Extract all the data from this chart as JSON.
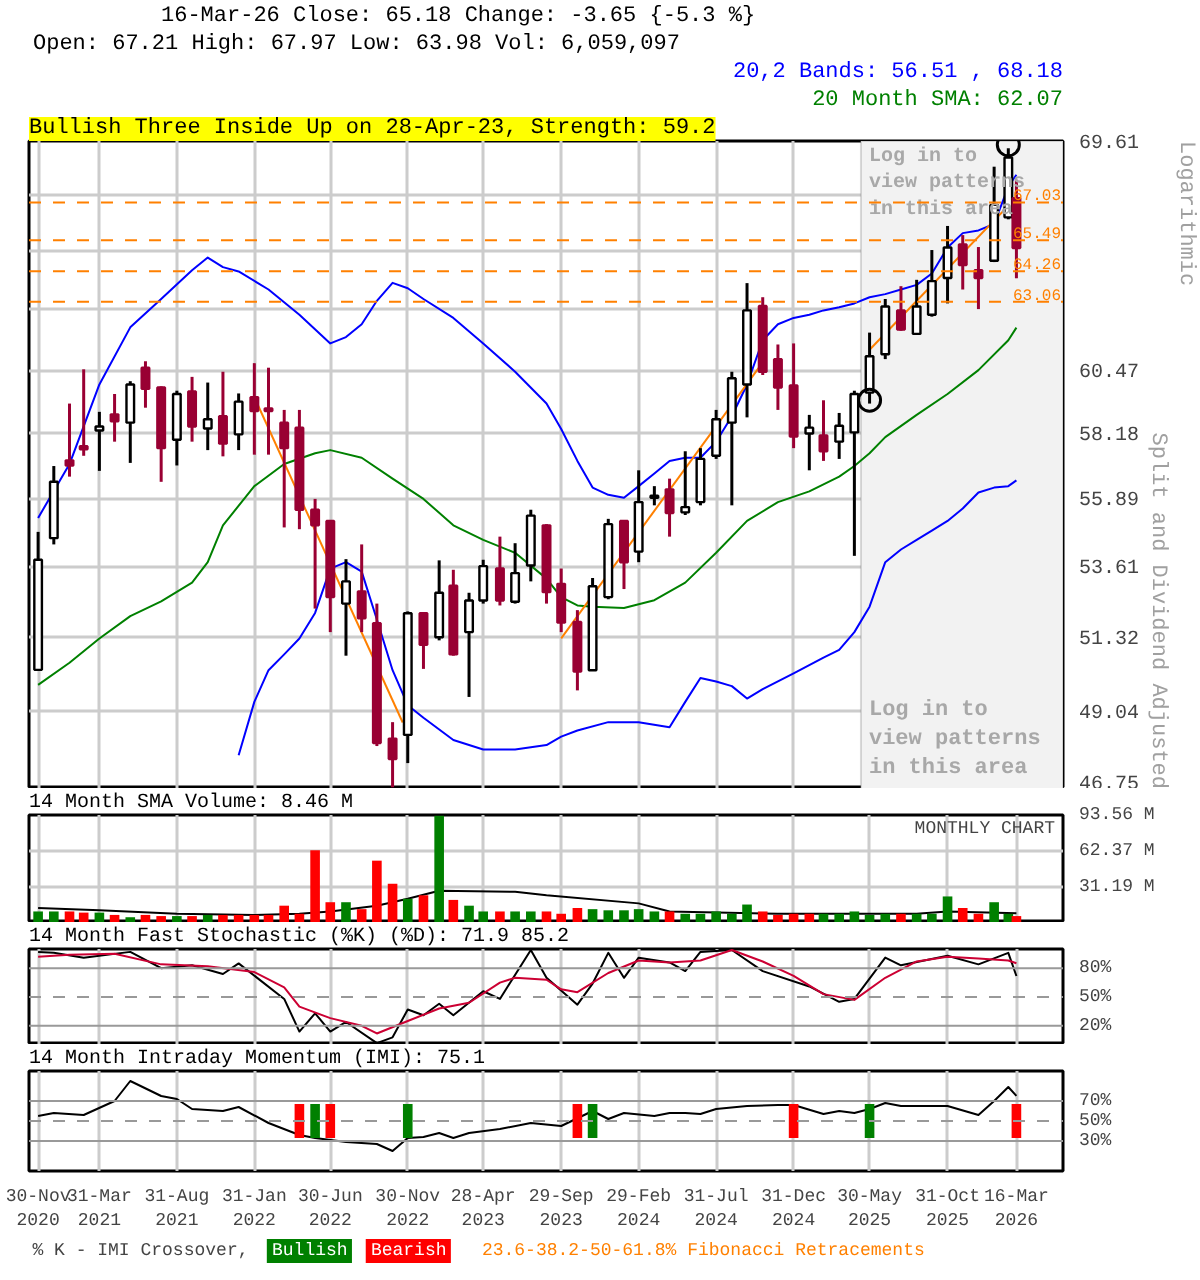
{
  "chart_data": [
    {
      "type": "candlestick",
      "title": "16-Mar-26 Close: 65.18 Change: -3.65 {-5.3 %}",
      "subtitle": "Open: 67.21 High: 67.97 Low: 63.98 Vol: 6,059,097",
      "ylabel": "Split and Dividend Adjusted",
      "annotations": [
        "Bullish Three Inside Up on 28-Apr-23, Strength: 59.2",
        "Logarithmic",
        "Log in to\nview patterns\nin this area"
      ],
      "x": [
        "2020-11-30",
        "2020-12-31",
        "2021-01-31",
        "2021-02-28",
        "2021-03-31",
        "2021-04-30",
        "2021-05-31",
        "2021-06-30",
        "2021-07-31",
        "2021-08-31",
        "2021-09-30",
        "2021-10-31",
        "2021-11-30",
        "2021-12-31",
        "2022-01-31",
        "2022-02-28",
        "2022-03-31",
        "2022-04-30",
        "2022-05-31",
        "2022-06-30",
        "2022-07-31",
        "2022-08-31",
        "2022-09-30",
        "2022-10-31",
        "2022-11-30",
        "2022-12-31",
        "2023-01-31",
        "2023-02-28",
        "2023-03-31",
        "2023-04-28",
        "2023-05-31",
        "2023-06-30",
        "2023-07-31",
        "2023-08-31",
        "2023-09-29",
        "2023-10-31",
        "2023-11-30",
        "2023-12-31",
        "2024-01-31",
        "2024-02-29",
        "2024-03-31",
        "2024-04-30",
        "2024-05-31",
        "2024-06-30",
        "2024-07-31",
        "2024-08-31",
        "2024-09-30",
        "2024-10-31",
        "2024-11-30",
        "2024-12-31",
        "2025-01-31",
        "2025-02-28",
        "2025-03-31",
        "2025-04-30",
        "2025-05-30",
        "2025-06-30",
        "2025-07-31",
        "2025-08-31",
        "2025-09-30",
        "2025-10-31",
        "2025-11-30",
        "2025-12-31",
        "2026-01-31",
        "2026-02-28",
        "2026-03-16"
      ],
      "ohlc": [
        [
          50.3,
          54.75,
          50.29,
          53.82
        ],
        [
          54.54,
          57.01,
          54.33,
          56.46
        ],
        [
          57.21,
          59.24,
          56.64,
          57.03
        ],
        [
          57.71,
          60.5,
          57.37,
          57.6
        ],
        [
          58.27,
          58.94,
          56.84,
          58.41
        ],
        [
          58.85,
          59.59,
          57.87,
          58.6
        ],
        [
          58.55,
          60.06,
          57.12,
          59.94
        ],
        [
          60.56,
          60.8,
          59.09,
          59.78
        ],
        [
          59.83,
          59.87,
          56.46,
          57.64
        ],
        [
          57.94,
          59.71,
          57.03,
          59.59
        ],
        [
          59.68,
          60.22,
          57.87,
          58.41
        ],
        [
          58.34,
          60.01,
          57.57,
          58.67
        ],
        [
          58.78,
          60.41,
          57.35,
          57.8
        ],
        [
          58.13,
          59.61,
          57.57,
          59.31
        ],
        [
          59.47,
          60.73,
          57.41,
          58.97
        ],
        [
          59.06,
          60.56,
          57.41,
          58.97
        ],
        [
          58.55,
          59.01,
          54.9,
          57.64
        ],
        [
          58.37,
          59.01,
          54.84,
          55.5
        ],
        [
          55.5,
          55.87,
          52.23,
          54.97
        ],
        [
          55.12,
          55.12,
          51.48,
          52.6
        ],
        [
          52.39,
          53.84,
          50.74,
          53.11
        ],
        [
          52.78,
          54.33,
          51.48,
          51.92
        ],
        [
          51.76,
          52.39,
          48.0,
          48.09
        ],
        [
          48.22,
          48.71,
          46.8,
          47.62
        ],
        [
          48.33,
          52.14,
          47.5,
          52.08
        ],
        [
          52.08,
          52.12,
          50.33,
          51.08
        ],
        [
          51.32,
          53.8,
          51.22,
          52.74
        ],
        [
          52.97,
          53.49,
          50.74,
          50.78
        ],
        [
          51.48,
          52.74,
          49.47,
          52.49
        ],
        [
          52.49,
          53.82,
          52.39,
          53.61
        ],
        [
          53.53,
          54.59,
          52.33,
          52.49
        ],
        [
          52.45,
          54.37,
          52.39,
          53.38
        ],
        [
          53.63,
          55.5,
          53.11,
          55.3
        ],
        [
          54.97,
          55.01,
          52.39,
          52.76
        ],
        [
          53.03,
          53.53,
          51.48,
          51.78
        ],
        [
          51.8,
          52.18,
          49.67,
          50.25
        ],
        [
          50.29,
          53.22,
          50.29,
          52.95
        ],
        [
          52.6,
          55.19,
          52.53,
          55.01
        ],
        [
          55.12,
          55.12,
          52.86,
          53.74
        ],
        [
          54.09,
          56.86,
          53.74,
          55.76
        ],
        [
          55.91,
          56.31,
          55.65,
          55.98
        ],
        [
          56.2,
          56.57,
          54.59,
          55.39
        ],
        [
          55.41,
          57.53,
          55.32,
          55.59
        ],
        [
          55.76,
          57.64,
          55.65,
          57.26
        ],
        [
          57.37,
          59.01,
          57.26,
          58.67
        ],
        [
          58.55,
          60.41,
          55.65,
          60.17
        ],
        [
          59.94,
          63.79,
          58.74,
          62.73
        ],
        [
          62.9,
          63.24,
          60.29,
          60.41
        ],
        [
          60.88,
          61.43,
          59.01,
          59.83
        ],
        [
          59.9,
          61.47,
          57.64,
          58.05
        ],
        [
          58.16,
          58.83,
          56.86,
          58.37
        ],
        [
          58.09,
          59.36,
          57.19,
          57.53
        ],
        [
          57.87,
          58.9,
          57.26,
          58.44
        ],
        [
          58.2,
          59.71,
          53.95,
          59.59
        ],
        [
          59.64,
          61.88,
          59.24,
          60.99
        ],
        [
          61.06,
          63.17,
          60.88,
          62.88
        ],
        [
          62.73,
          63.67,
          61.95,
          62.0
        ],
        [
          61.83,
          63.92,
          61.83,
          62.88
        ],
        [
          62.56,
          65.1,
          62.49,
          63.87
        ],
        [
          63.99,
          66.07,
          63.0,
          65.2
        ],
        [
          65.32,
          65.7,
          63.54,
          64.5
        ],
        [
          64.3,
          65.22,
          62.78,
          63.99
        ],
        [
          64.67,
          68.52,
          64.62,
          66.93
        ],
        [
          66.42,
          69.3,
          66.34,
          68.91
        ],
        [
          67.21,
          67.97,
          63.98,
          65.18
        ]
      ],
      "colors": [
        "#ffffff",
        "#ffffff",
        "#990033",
        "#990033",
        "#ffffff",
        "#990033",
        "#ffffff",
        "#990033",
        "#990033",
        "#ffffff",
        "#990033",
        "#ffffff",
        "#990033",
        "#ffffff",
        "#990033",
        "#990033",
        "#990033",
        "#990033",
        "#990033",
        "#990033",
        "#ffffff",
        "#990033",
        "#990033",
        "#990033",
        "#ffffff",
        "#990033",
        "#ffffff",
        "#990033",
        "#ffffff",
        "#ffffff",
        "#990033",
        "#ffffff",
        "#ffffff",
        "#990033",
        "#990033",
        "#990033",
        "#ffffff",
        "#ffffff",
        "#990033",
        "#ffffff",
        "#ffffff",
        "#990033",
        "#ffffff",
        "#ffffff",
        "#ffffff",
        "#ffffff",
        "#ffffff",
        "#990033",
        "#990033",
        "#990033",
        "#ffffff",
        "#990033",
        "#ffffff",
        "#ffffff",
        "#ffffff",
        "#ffffff",
        "#990033",
        "#ffffff",
        "#ffffff",
        "#ffffff",
        "#990033",
        "#990033",
        "#ffffff",
        "#ffffff",
        "#990033"
      ],
      "series": [
        {
          "name": "20,2 Bands: 56.51 , 68.18",
          "type": "line",
          "color": "#0000ff",
          "x": [
            "2020-11-30",
            "2021-01-31",
            "2021-03-31",
            "2021-05-31",
            "2021-07-31",
            "2021-09-30",
            "2021-10-31",
            "2021-11-30",
            "2021-12-31",
            "2022-02-28",
            "2022-04-30",
            "2022-06-30",
            "2022-07-31",
            "2022-08-31",
            "2022-09-30",
            "2022-10-31",
            "2022-11-30",
            "2022-12-31",
            "2023-02-28",
            "2023-04-28",
            "2023-06-30",
            "2023-08-31",
            "2023-09-29",
            "2023-10-31",
            "2023-11-30",
            "2023-12-31",
            "2024-01-31",
            "2024-02-29",
            "2024-03-31",
            "2024-04-30",
            "2024-05-31",
            "2024-06-30",
            "2024-07-31",
            "2024-08-31",
            "2024-09-30",
            "2024-10-31",
            "2024-11-30",
            "2024-12-31",
            "2025-01-31",
            "2025-02-28",
            "2025-03-31",
            "2025-04-30",
            "2025-05-30",
            "2025-06-30",
            "2025-07-31",
            "2025-08-31",
            "2025-09-30",
            "2025-10-31",
            "2025-11-30",
            "2025-12-31",
            "2026-01-31",
            "2026-02-28",
            "2026-03-16"
          ],
          "values": [
            55.22,
            57.08,
            59.94,
            62.08,
            63.17,
            64.3,
            64.8,
            64.42,
            64.25,
            63.54,
            62.56,
            61.47,
            61.71,
            62.2,
            63.1,
            63.8,
            63.59,
            63.17,
            62.44,
            61.47,
            60.41,
            59.24,
            58.32,
            57.19,
            56.26,
            56.01,
            55.91,
            56.31,
            56.75,
            57.19,
            57.3,
            57.3,
            57.87,
            58.78,
            59.94,
            61.59,
            62.2,
            62.44,
            62.56,
            62.73,
            62.85,
            63.0,
            63.24,
            63.36,
            63.54,
            63.72,
            64.17,
            65.2,
            65.78,
            65.89,
            66.15,
            67.69,
            68.18
          ]
        },
        {
          "type": "line",
          "color": "#0000ff",
          "x": [
            "2021-12-31",
            "2022-01-31",
            "2022-02-28",
            "2022-03-31",
            "2022-04-30",
            "2022-05-31",
            "2022-06-30",
            "2022-07-31",
            "2022-08-31",
            "2022-09-30",
            "2022-10-31",
            "2022-11-30",
            "2022-12-31",
            "2023-02-28",
            "2023-04-28",
            "2023-06-30",
            "2023-08-31",
            "2023-09-29",
            "2023-10-31",
            "2023-12-31",
            "2024-02-29",
            "2024-04-30",
            "2024-05-31",
            "2024-06-30",
            "2024-07-31",
            "2024-08-31",
            "2024-09-30",
            "2024-10-31",
            "2024-12-31",
            "2025-02-28",
            "2025-03-31",
            "2025-04-30",
            "2025-05-30",
            "2025-06-30",
            "2025-07-31",
            "2025-08-31",
            "2025-09-30",
            "2025-10-31",
            "2025-11-30",
            "2025-12-31",
            "2026-01-31",
            "2026-02-28",
            "2026-03-16"
          ],
          "values": [
            47.73,
            49.32,
            50.29,
            50.78,
            51.28,
            52.09,
            53.53,
            53.74,
            53.43,
            51.88,
            50.29,
            49.22,
            48.84,
            48.18,
            47.9,
            47.9,
            48.03,
            48.28,
            48.46,
            48.71,
            48.71,
            48.56,
            49.32,
            50.05,
            49.94,
            49.8,
            49.42,
            49.71,
            50.19,
            50.68,
            50.92,
            51.48,
            52.29,
            53.74,
            54.16,
            54.48,
            54.79,
            55.12,
            55.54,
            56.09,
            56.26,
            56.31,
            56.51
          ]
        },
        {
          "name": "20 Month SMA: 62.07",
          "type": "line",
          "color": "#008000",
          "x": [
            "2020-11-30",
            "2021-01-31",
            "2021-03-31",
            "2021-05-31",
            "2021-07-31",
            "2021-09-30",
            "2021-10-31",
            "2021-11-30",
            "2022-01-31",
            "2022-03-31",
            "2022-05-31",
            "2022-06-30",
            "2022-08-31",
            "2022-10-31",
            "2022-12-31",
            "2023-02-28",
            "2023-04-28",
            "2023-06-30",
            "2023-08-31",
            "2023-09-29",
            "2023-10-31",
            "2023-11-30",
            "2024-01-31",
            "2024-03-31",
            "2024-05-31",
            "2024-07-31",
            "2024-09-30",
            "2024-11-30",
            "2025-01-31",
            "2025-03-31",
            "2025-04-30",
            "2025-05-30",
            "2025-06-30",
            "2025-08-31",
            "2025-10-31",
            "2025-12-31",
            "2026-02-28",
            "2026-03-16"
          ],
          "values": [
            49.84,
            50.52,
            51.28,
            51.99,
            52.46,
            53.07,
            53.74,
            54.97,
            56.31,
            57.08,
            57.46,
            57.57,
            57.3,
            56.57,
            55.87,
            54.97,
            54.48,
            54.05,
            53.2,
            52.6,
            52.33,
            52.29,
            52.25,
            52.5,
            53.07,
            54.05,
            55.12,
            55.76,
            56.13,
            56.64,
            57.01,
            57.46,
            58.03,
            58.83,
            59.59,
            60.47,
            61.59,
            62.07
          ]
        },
        {
          "type": "line",
          "color": "#ff8000",
          "x": [
            "2022-01-31",
            "2022-11-20"
          ],
          "values": [
            59.47,
            48.7
          ]
        },
        {
          "type": "line",
          "color": "#ff8000",
          "x": [
            "2023-09-29",
            "2024-10-31"
          ],
          "values": [
            51.28,
            60.76
          ]
        },
        {
          "type": "line",
          "color": "#ff8000",
          "x": [
            "2025-05-30",
            "2026-03-16"
          ],
          "values": [
            61.23,
            67.24
          ]
        },
        {
          "type": "scatter",
          "marker": "circle",
          "color": "#000000",
          "x": [
            "2025-05-30",
            "2026-02-28"
          ],
          "values": [
            59.36,
            69.45
          ]
        }
      ],
      "ref_lines": [
        {
          "axis": "y",
          "value": 67.03,
          "label": "67.03",
          "color": "#ff8000",
          "line_style": "dashed"
        },
        {
          "axis": "y",
          "value": 65.49,
          "label": "65.49",
          "color": "#ff8000",
          "line_style": "dashed"
        },
        {
          "axis": "y",
          "value": 64.26,
          "label": "64.26",
          "color": "#ff8000",
          "line_style": "dashed"
        },
        {
          "axis": "y",
          "value": 63.06,
          "label": "63.06",
          "color": "#ff8000",
          "line_style": "dashed"
        }
      ],
      "bands": [
        {
          "axis": "x",
          "from": "2025-05-13",
          "to": "2026-06-16",
          "label": "Log in to\nview patterns\nin this area",
          "color": "#f2f2f2"
        }
      ],
      "xlim": [
        "2020-11-12",
        "2026-06-16"
      ],
      "ylim": [
        46.75,
        69.61
      ],
      "yticks": [
        46.75,
        49.04,
        51.32,
        53.61,
        55.89,
        58.18,
        60.47,
        {
          "value": 62.75,
          "label": null
        },
        {
          "value": 65.04,
          "label": null
        },
        {
          "value": 67.32,
          "label": null
        },
        69.61
      ],
      "log": true,
      "grid": true,
      "legend": "top right",
      "tick_labels": "y"
    },
    {
      "type": "bar",
      "title": "14 Month SMA Volume: 8.46 M",
      "annotations": [
        "MONTHLY CHART"
      ],
      "x": [
        "2020-11-30",
        "2020-12-31",
        "2021-01-31",
        "2021-02-28",
        "2021-03-31",
        "2021-04-30",
        "2021-05-31",
        "2021-06-30",
        "2021-07-31",
        "2021-08-31",
        "2021-09-30",
        "2021-10-31",
        "2021-11-30",
        "2021-12-31",
        "2022-01-31",
        "2022-02-28",
        "2022-03-31",
        "2022-04-30",
        "2022-05-31",
        "2022-06-30",
        "2022-07-31",
        "2022-08-31",
        "2022-09-30",
        "2022-10-31",
        "2022-11-30",
        "2022-12-31",
        "2023-01-31",
        "2023-02-28",
        "2023-03-31",
        "2023-04-28",
        "2023-05-31",
        "2023-06-30",
        "2023-07-31",
        "2023-08-31",
        "2023-09-29",
        "2023-10-31",
        "2023-11-30",
        "2023-12-31",
        "2024-01-31",
        "2024-02-29",
        "2024-03-31",
        "2024-04-30",
        "2024-05-31",
        "2024-06-30",
        "2024-07-31",
        "2024-08-31",
        "2024-09-30",
        "2024-10-31",
        "2024-11-30",
        "2024-12-31",
        "2025-01-31",
        "2025-02-28",
        "2025-03-31",
        "2025-04-30",
        "2025-05-30",
        "2025-06-30",
        "2025-07-31",
        "2025-08-31",
        "2025-09-30",
        "2025-10-31",
        "2025-11-30",
        "2025-12-31",
        "2026-01-31",
        "2026-02-28",
        "2026-03-16"
      ],
      "values": [
        10,
        10,
        10,
        9,
        9,
        7,
        5,
        7,
        6,
        6,
        6,
        7,
        7,
        7,
        7,
        7,
        15,
        8,
        63,
        18,
        18,
        12,
        54,
        34,
        21,
        24,
        93,
        20,
        15,
        10,
        10,
        10,
        10,
        10,
        8,
        13,
        12,
        11,
        11,
        12,
        10,
        10,
        8,
        8,
        10,
        8,
        16,
        10,
        7,
        8,
        8,
        8,
        8,
        10,
        7,
        8,
        8,
        8,
        8,
        23,
        13,
        8,
        18,
        8,
        6
      ],
      "colors": [
        "#008000",
        "#008000",
        "#ff0000",
        "#ff0000",
        "#008000",
        "#ff0000",
        "#008000",
        "#ff0000",
        "#ff0000",
        "#008000",
        "#ff0000",
        "#008000",
        "#ff0000",
        "#ff0000",
        "#ff0000",
        "#ff0000",
        "#ff0000",
        "#ff0000",
        "#ff0000",
        "#ff0000",
        "#008000",
        "#ff0000",
        "#ff0000",
        "#ff0000",
        "#008000",
        "#ff0000",
        "#008000",
        "#ff0000",
        "#008000",
        "#008000",
        "#ff0000",
        "#008000",
        "#008000",
        "#ff0000",
        "#ff0000",
        "#ff0000",
        "#008000",
        "#008000",
        "#008000",
        "#008000",
        "#008000",
        "#ff0000",
        "#008000",
        "#008000",
        "#008000",
        "#008000",
        "#008000",
        "#ff0000",
        "#ff0000",
        "#ff0000",
        "#ff0000",
        "#008000",
        "#008000",
        "#008000",
        "#008000",
        "#008000",
        "#ff0000",
        "#008000",
        "#008000",
        "#008000",
        "#ff0000",
        "#ff0000",
        "#008000",
        "#008000",
        "#ff0000"
      ],
      "series": [
        {
          "type": "line",
          "color": "#000000",
          "x": [
            "2020-11-30",
            "2021-03-31",
            "2021-08-31",
            "2022-01-31",
            "2022-04-30",
            "2022-06-30",
            "2022-09-30",
            "2022-11-30",
            "2023-01-31",
            "2023-06-30",
            "2023-08-31",
            "2024-02-29",
            "2024-04-30",
            "2024-11-30",
            "2025-08-31",
            "2025-10-31",
            "2026-03-16"
          ],
          "values": [
            13,
            11,
            8,
            7,
            8,
            10,
            15,
            21,
            28,
            27,
            24,
            17,
            10,
            8,
            8,
            10,
            8.46
          ]
        }
      ],
      "xlim": [
        "2020-11-12",
        "2026-06-16"
      ],
      "ylim": [
        0,
        93.56
      ],
      "yticks": [
        {
          "value": 31.19,
          "label": "31.19 M"
        },
        {
          "value": 62.37,
          "label": "62.37 M"
        },
        {
          "value": 93.56,
          "label": "93.56 M"
        }
      ],
      "grid": true,
      "tick_labels": "y"
    },
    {
      "type": "line",
      "title": "14 Month Fast Stochastic (%K) (%D): 71.9  85.2",
      "series": [
        {
          "type": "line",
          "color": "#000000",
          "x": [
            "2020-11-30",
            "2020-12-31",
            "2021-02-28",
            "2021-05-31",
            "2021-07-31",
            "2021-09-30",
            "2021-11-30",
            "2021-12-31",
            "2022-03-31",
            "2022-04-30",
            "2022-05-31",
            "2022-06-30",
            "2022-07-31",
            "2022-09-30",
            "2022-10-31",
            "2022-11-30",
            "2022-12-31",
            "2023-01-31",
            "2023-02-28",
            "2023-04-28",
            "2023-05-31",
            "2023-07-31",
            "2023-08-31",
            "2023-10-31",
            "2023-11-30",
            "2023-12-31",
            "2024-01-31",
            "2024-02-29",
            "2024-04-30",
            "2024-05-31",
            "2024-06-30",
            "2024-08-31",
            "2024-10-31",
            "2025-01-31",
            "2025-03-31",
            "2025-04-30",
            "2025-06-30",
            "2025-07-31",
            "2025-10-31",
            "2025-12-31",
            "2026-02-28",
            "2026-03-16"
          ],
          "values": [
            97,
            96,
            91,
            97,
            80,
            83,
            74,
            85,
            48,
            14,
            33,
            14,
            24,
            2,
            8,
            37,
            31,
            43,
            31,
            56,
            48,
            99,
            70,
            42,
            64,
            96,
            70,
            91,
            86,
            77,
            97,
            99,
            77,
            61,
            45,
            48,
            91,
            83,
            93,
            84,
            96,
            71.9
          ]
        },
        {
          "type": "line",
          "color": "#cc0033",
          "x": [
            "2020-11-30",
            "2021-01-31",
            "2021-04-30",
            "2021-07-31",
            "2021-10-31",
            "2022-01-31",
            "2022-03-31",
            "2022-04-30",
            "2022-06-30",
            "2022-08-31",
            "2022-09-30",
            "2022-11-30",
            "2023-01-31",
            "2023-03-31",
            "2023-05-31",
            "2023-06-30",
            "2023-08-31",
            "2023-09-29",
            "2023-10-31",
            "2023-12-31",
            "2024-02-29",
            "2024-04-30",
            "2024-06-30",
            "2024-08-31",
            "2024-10-31",
            "2024-12-31",
            "2025-02-28",
            "2025-04-30",
            "2025-06-30",
            "2025-08-31",
            "2025-10-31",
            "2025-12-31",
            "2026-02-28",
            "2026-03-16"
          ],
          "values": [
            92,
            94,
            95,
            84,
            82,
            76,
            60,
            40,
            28,
            20,
            12,
            25,
            38,
            44,
            65,
            70,
            68,
            58,
            55,
            75,
            88,
            86,
            88,
            99,
            87,
            72,
            53,
            47,
            70,
            87,
            92,
            90,
            88,
            85.2
          ]
        }
      ],
      "ref_lines": [
        {
          "axis": "y",
          "value": 80,
          "color": "#999999",
          "line_style": "solid"
        },
        {
          "axis": "y",
          "value": 50,
          "color": "#999999",
          "line_style": "dashed"
        },
        {
          "axis": "y",
          "value": 20,
          "color": "#999999",
          "line_style": "solid"
        }
      ],
      "xlim": [
        "2020-11-12",
        "2026-06-16"
      ],
      "ylim": [
        0,
        100
      ],
      "yticks": [
        {
          "value": 20,
          "label": "20%"
        },
        {
          "value": 50,
          "label": "50%"
        },
        {
          "value": 80,
          "label": "80%"
        }
      ],
      "grid": "x",
      "tick_labels": "y"
    },
    {
      "type": "line",
      "title": "14 Month Intraday Momentum (IMI): 75.1",
      "legend_title": "% K - IMI Crossover,",
      "annotations": [
        "23.6-38.2-50-61.8% Fibonacci Retracements"
      ],
      "series": [
        {
          "type": "line",
          "color": "#000000",
          "x": [
            "2020-11-30",
            "2020-12-31",
            "2021-02-28",
            "2021-04-30",
            "2021-05-31",
            "2021-07-31",
            "2021-08-31",
            "2021-09-30",
            "2021-11-30",
            "2021-12-31",
            "2022-02-28",
            "2022-04-30",
            "2022-05-31",
            "2022-07-31",
            "2022-09-30",
            "2022-10-31",
            "2022-11-30",
            "2022-12-31",
            "2023-01-31",
            "2023-02-28",
            "2023-03-31",
            "2023-05-31",
            "2023-07-31",
            "2023-09-29",
            "2023-11-30",
            "2023-12-31",
            "2024-01-31",
            "2024-03-31",
            "2024-04-30",
            "2024-05-31",
            "2024-06-30",
            "2024-07-31",
            "2024-09-30",
            "2024-11-30",
            "2024-12-31",
            "2025-02-28",
            "2025-03-31",
            "2025-04-30",
            "2025-05-30",
            "2025-06-30",
            "2025-07-31",
            "2025-10-31",
            "2025-12-31",
            "2026-01-31",
            "2026-02-28",
            "2026-03-16"
          ],
          "values": [
            55,
            58,
            56,
            70,
            90,
            75,
            72,
            62,
            60,
            64,
            48,
            36,
            33,
            29,
            27,
            20,
            33,
            34,
            38,
            33,
            38,
            42,
            48,
            45,
            60,
            52,
            58,
            55,
            58,
            58,
            57,
            62,
            65,
            66,
            66,
            57,
            60,
            58,
            62,
            68,
            65,
            65,
            56,
            70,
            84,
            75.1
          ]
        },
        {
          "name": "Bullish",
          "type": "bar",
          "color": "#008000",
          "x": [
            "2022-05-31",
            "2022-11-30",
            "2023-11-30",
            "2025-05-30"
          ],
          "base": [
            33,
            33,
            33,
            33
          ],
          "values": [
            34,
            34,
            34,
            34
          ]
        },
        {
          "name": "Bearish",
          "type": "bar",
          "color": "#ff0000",
          "x": [
            "2022-04-30",
            "2022-06-30",
            "2023-10-31",
            "2024-12-31",
            "2026-03-16"
          ],
          "base": [
            33,
            33,
            33,
            33,
            33
          ],
          "values": [
            34,
            34,
            34,
            34,
            34
          ]
        }
      ],
      "ref_lines": [
        {
          "axis": "y",
          "value": 70,
          "color": "#999999",
          "line_style": "solid"
        },
        {
          "axis": "y",
          "value": 50,
          "color": "#999999",
          "line_style": "dashed"
        },
        {
          "axis": "y",
          "value": 30,
          "color": "#999999",
          "line_style": "solid"
        }
      ],
      "xlim": [
        "2020-11-12",
        "2026-06-16"
      ],
      "xticks": [
        {
          "value": "2020-11-30",
          "label": "30-Nov\n2020"
        },
        {
          "value": "2021-03-31",
          "label": "31-Mar\n2021"
        },
        {
          "value": "2021-08-31",
          "label": "31-Aug\n2021"
        },
        {
          "value": "2022-01-31",
          "label": "31-Jan\n2022"
        },
        {
          "value": "2022-06-30",
          "label": "30-Jun\n2022"
        },
        {
          "value": "2022-11-30",
          "label": "30-Nov\n2022"
        },
        {
          "value": "2023-04-28",
          "label": "28-Apr\n2023"
        },
        {
          "value": "2023-09-29",
          "label": "29-Sep\n2023"
        },
        {
          "value": "2024-02-29",
          "label": "29-Feb\n2024"
        },
        {
          "value": "2024-07-31",
          "label": "31-Jul\n2024"
        },
        {
          "value": "2024-12-31",
          "label": "31-Dec\n2024"
        },
        {
          "value": "2025-05-30",
          "label": "30-May\n2025"
        },
        {
          "value": "2025-10-31",
          "label": "31-Oct\n2025"
        },
        {
          "value": "2026-03-16",
          "label": "16-Mar\n2026"
        }
      ],
      "ylim": [
        0,
        100
      ],
      "yticks": [
        {
          "value": 30,
          "label": "30%"
        },
        {
          "value": 50,
          "label": "50%"
        },
        {
          "value": 70,
          "label": "70%"
        }
      ],
      "grid": "x",
      "legend": "bottom"
    }
  ]
}
